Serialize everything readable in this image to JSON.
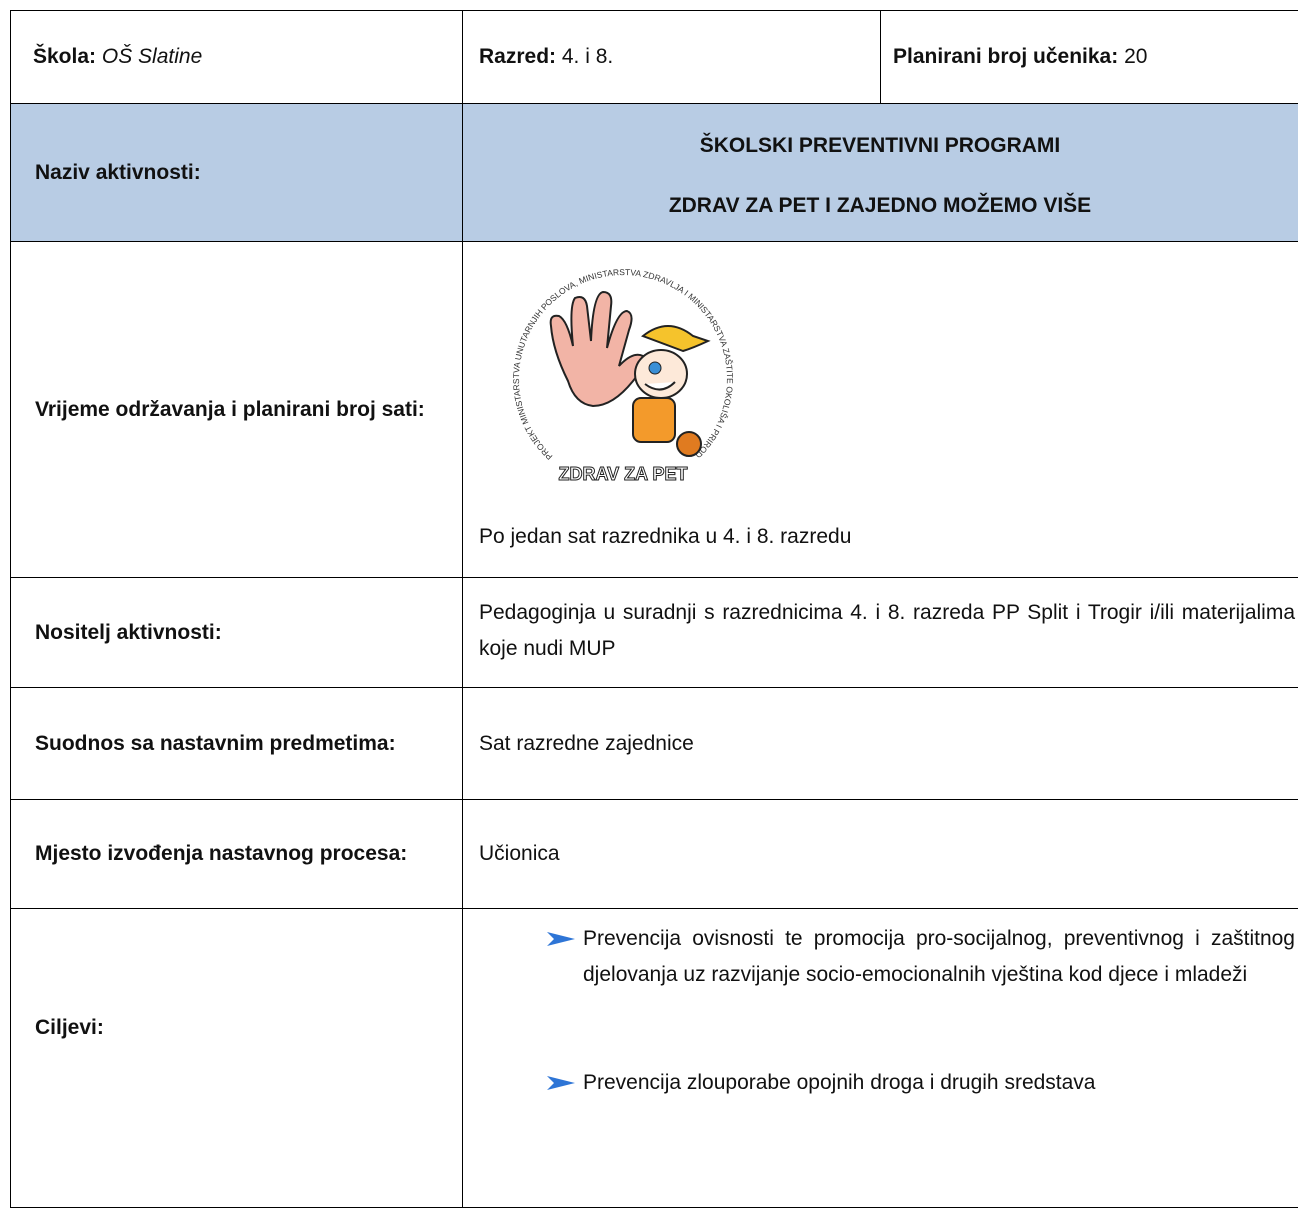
{
  "header": {
    "school_label": "Škola:",
    "school_value": "OŠ Slatine",
    "grade_label": "Razred:",
    "grade_value": "4. i 8.",
    "students_label": "Planirani broj učenika:",
    "students_value": "20"
  },
  "activity": {
    "label": "Naziv aktivnosti:",
    "title_lines": [
      "ŠKOLSKI PREVENTIVNI PROGRAMI",
      "ZDRAV ZA PET  I  ZAJEDNO MOŽEMO VIŠE"
    ]
  },
  "time": {
    "label": "Vrijeme održavanja i planirani broj sati:",
    "logo": {
      "ring_text": "PROJEKT MINISTARSTVA UNUTARNJIH POSLOVA, MINISTARSTVA ZDRAVLJA I MINISTARSTVA ZAŠTITE OKOLIŠA I PRIRODE",
      "name": "ZDRAV ZA PET"
    },
    "value": "Po jedan sat razrednika u 4. i 8. razredu"
  },
  "holder": {
    "label": "Nositelj aktivnosti:",
    "value": "Pedagoginja u suradnji s razrednicima 4. i 8. razreda PP Split i Trogir i/ili materijalima koje nudi MUP"
  },
  "subjects": {
    "label": "Suodnos sa nastavnim predmetima:",
    "value": "Sat razredne zajednice"
  },
  "place": {
    "label": "Mjesto izvođenja nastavnog procesa:",
    "value": "Učionica"
  },
  "goals": {
    "label": "Ciljevi:",
    "items": [
      "Prevencija ovisnosti te promocija pro-socijalnog, preventivnog i zaštitnog djelovanja uz razvijanje socio-emocionalnih vještina kod djece i mladeži",
      "Prevencija zlouporabe opojnih droga i drugih sredstava"
    ]
  }
}
